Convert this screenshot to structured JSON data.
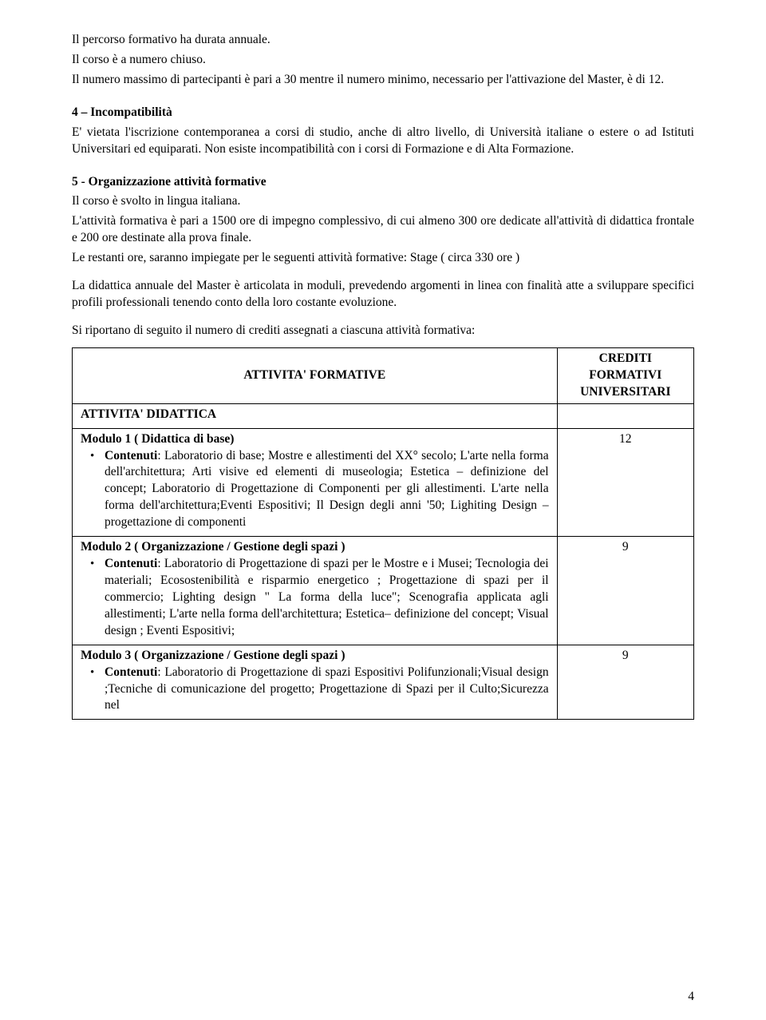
{
  "intro": {
    "p1": "Il percorso formativo ha durata annuale.",
    "p2": "Il corso è a numero chiuso.",
    "p3": "Il numero massimo di  partecipanti è pari a 30 mentre il numero minimo, necessario per l'attivazione del Master, è di 12."
  },
  "sec4": {
    "title": "4 – Incompatibilità",
    "body": "E' vietata l'iscrizione contemporanea a corsi di studio, anche di altro livello, di Università italiane o estere o ad Istituti Universitari ed equiparati. Non esiste incompatibilità con i corsi di Formazione e di Alta Formazione."
  },
  "sec5": {
    "title": "5 - Organizzazione attività formative",
    "p1": "Il corso è svolto in lingua italiana.",
    "p2": "L'attività formativa è pari a 1500 ore di impegno complessivo, di cui almeno 300 ore dedicate all'attività di didattica frontale e 200 ore destinate alla prova finale.",
    "p3": "Le restanti ore, saranno impiegate per le seguenti attività formative: Stage ( circa 330 ore )",
    "p4": "La didattica annuale del Master è articolata in moduli, prevedendo argomenti in linea con finalità atte a sviluppare specifici profili professionali tenendo conto della loro costante evoluzione.",
    "p5": "Si riportano di seguito il numero di crediti assegnati a ciascuna attività formativa:"
  },
  "table": {
    "header_attivita": "ATTIVITA' FORMATIVE",
    "header_crediti_l1": "CREDITI",
    "header_crediti_l2": "FORMATIVI",
    "header_crediti_l3": "UNIVERSITARI",
    "row_didattica": "ATTIVITA' DIDATTICA",
    "mod1_title": "Modulo 1  ( Didattica di base)",
    "mod1_contenuti_label": "Contenuti",
    "mod1_contenuti": ": Laboratorio di base; Mostre e allestimenti del XX° secolo; L'arte nella forma dell'architettura; Arti visive ed elementi di museologia; Estetica – definizione del concept; Laboratorio di Progettazione di Componenti per gli allestimenti. L'arte nella forma dell'architettura;Eventi Espositivi; Il Design degli anni '50; Lighiting Design – progettazione di componenti",
    "mod1_crediti": "12",
    "mod2_title": "Modulo  2  ( Organizzazione / Gestione degli spazi )",
    "mod2_contenuti_label": "Contenuti",
    "mod2_contenuti": ": Laboratorio di Progettazione di spazi per le Mostre e i Musei; Tecnologia dei materiali; Ecosostenibilità e risparmio energetico ; Progettazione di spazi per il commercio; Lighting design \" La forma della luce\"; Scenografia applicata agli allestimenti; L'arte nella forma dell'architettura; Estetica– definizione del concept; Visual design ; Eventi Espositivi;",
    "mod2_crediti": "9",
    "mod3_title": "Modulo  3  ( Organizzazione / Gestione degli spazi )",
    "mod3_contenuti_label": "Contenuti",
    "mod3_contenuti": ": Laboratorio di Progettazione di spazi Espositivi Polifunzionali;Visual design ;Tecniche di comunicazione del progetto; Progettazione di Spazi per il Culto;Sicurezza nel",
    "mod3_crediti": "9"
  },
  "page_num": "4"
}
